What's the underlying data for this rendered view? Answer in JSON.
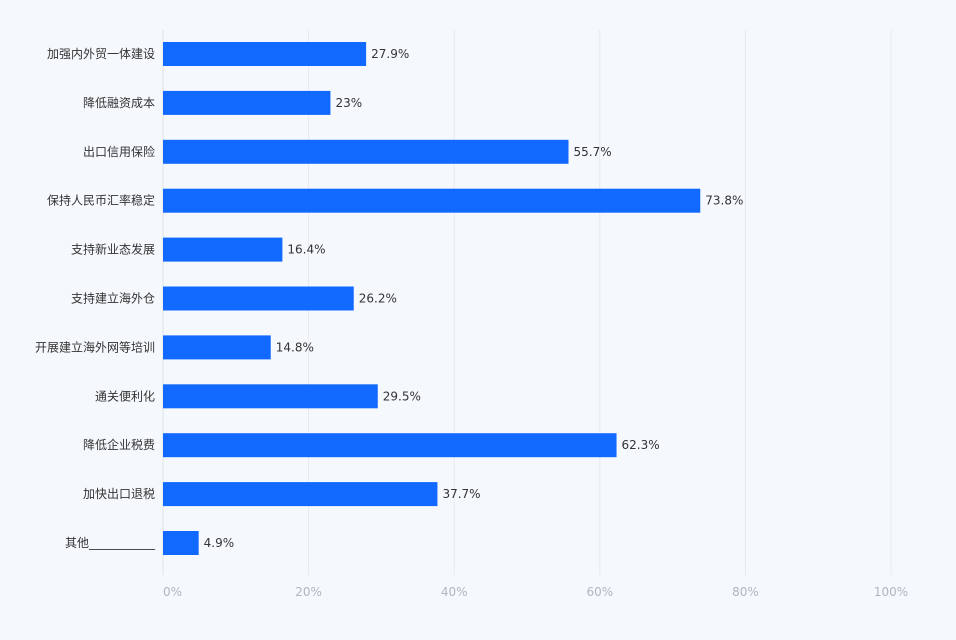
{
  "chart_data": {
    "type": "bar",
    "orientation": "horizontal",
    "categories": [
      "加强内外贸一体建设",
      "降低融资成本",
      "出口信用保险",
      "保持人民币汇率稳定",
      "支持新业态发展",
      "支持建立海外仓",
      "开展建立海外网等培训",
      "通关便利化",
      "降低企业税费",
      "加快出口退税",
      "其他___________"
    ],
    "values": [
      27.9,
      23,
      55.7,
      73.8,
      16.4,
      26.2,
      14.8,
      29.5,
      62.3,
      37.7,
      4.9
    ],
    "value_labels": [
      "27.9%",
      "23%",
      "55.7%",
      "73.8%",
      "16.4%",
      "26.2%",
      "14.8%",
      "29.5%",
      "62.3%",
      "37.7%",
      "4.9%"
    ],
    "xlim": [
      0,
      100
    ],
    "x_ticks": [
      0,
      20,
      40,
      60,
      80,
      100
    ],
    "x_tick_labels": [
      "0%",
      "20%",
      "40%",
      "60%",
      "80%",
      "100%"
    ],
    "grid": true,
    "bar_color": "#1269ff",
    "title": "",
    "xlabel": "",
    "ylabel": ""
  }
}
